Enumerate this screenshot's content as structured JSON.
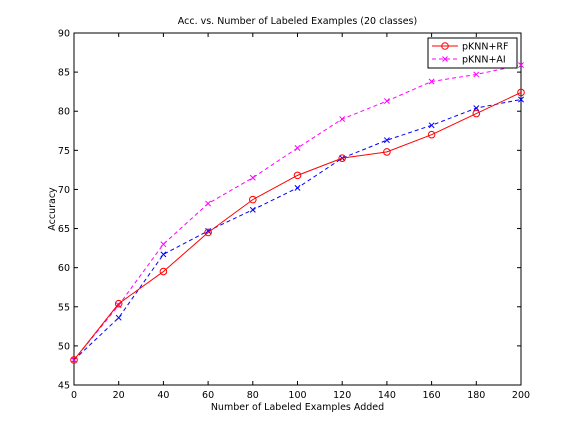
{
  "chart_data": {
    "type": "line",
    "title": "Acc. vs. Number of Labeled Examples (20 classes)",
    "xlabel": "Number of Labeled Examples Added",
    "ylabel": "Accuracy",
    "xlim": [
      0,
      200
    ],
    "ylim": [
      45,
      90
    ],
    "xticks": [
      0,
      20,
      40,
      60,
      80,
      100,
      120,
      140,
      160,
      180,
      200
    ],
    "yticks": [
      45,
      50,
      55,
      60,
      65,
      70,
      75,
      80,
      85,
      90
    ],
    "grid": false,
    "legend_position": "top-right",
    "series": [
      {
        "name": "pKNN+RF",
        "color": "#ff0000",
        "line_style": "solid",
        "marker": "circle",
        "x": [
          0,
          20,
          40,
          60,
          80,
          100,
          120,
          140,
          160,
          180,
          200
        ],
        "y": [
          48.2,
          55.4,
          59.5,
          64.5,
          68.7,
          71.8,
          74.0,
          74.8,
          77.0,
          79.7,
          82.4
        ]
      },
      {
        "name": "pKNN+AI",
        "color": "#ff00ff",
        "line_style": "dashed",
        "marker": "x",
        "x": [
          0,
          20,
          40,
          60,
          80,
          100,
          120,
          140,
          160,
          180,
          200
        ],
        "y": [
          48.2,
          55.2,
          63.0,
          68.2,
          71.5,
          75.3,
          79.0,
          81.3,
          83.8,
          84.7,
          85.9
        ]
      },
      {
        "name": "",
        "color": "#0000ff",
        "line_style": "dashed",
        "marker": "x",
        "x": [
          0,
          20,
          40,
          60,
          80,
          100,
          120,
          140,
          160,
          180,
          200
        ],
        "y": [
          48.2,
          53.6,
          61.7,
          64.7,
          67.4,
          70.2,
          74.0,
          76.3,
          78.2,
          80.4,
          81.5
        ]
      }
    ]
  }
}
